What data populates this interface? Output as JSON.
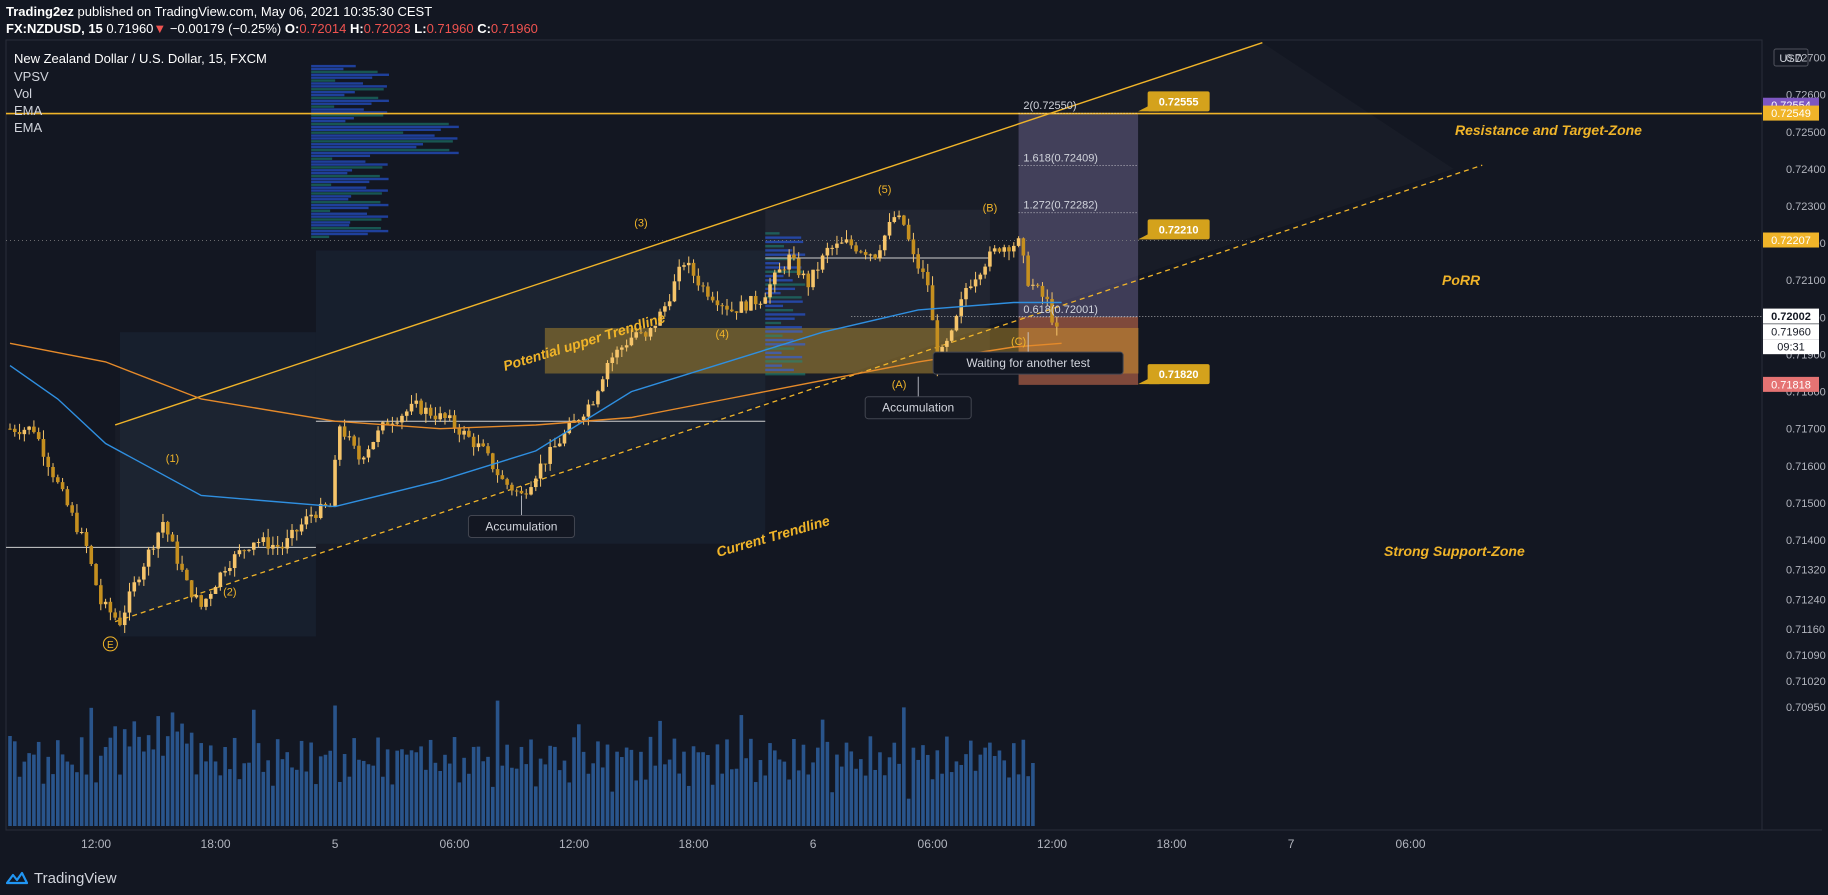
{
  "header": {
    "publisher": "Trading2ez",
    "published_text": "published on TradingView.com, May 06, 2021 10:35:30 CEST",
    "symbol": "FX:NZDUSD, 15",
    "last": "0.71960",
    "change": "−0.00179 (−0.25%)",
    "o_label": "O:",
    "o": "0.72014",
    "h_label": "H:",
    "h": "0.72023",
    "l_label": "L:",
    "l": "0.71960",
    "c_label": "C:",
    "c": "0.71960"
  },
  "legend": {
    "title": "New Zealand Dollar / U.S. Dollar, 15, FXCM",
    "indicators": [
      "VPSV",
      "Vol",
      "EMA",
      "EMA"
    ]
  },
  "footer": {
    "brand": "TradingView"
  },
  "colors": {
    "background": "#131722",
    "gold": "#f0b429",
    "candle": "#f5c46a",
    "ema_fast": "#2f8fe0",
    "ema_slow": "#e58a2a",
    "volume": "#2e5f9e",
    "label_bg": "#d4a21c"
  },
  "chart_data": {
    "type": "candlestick",
    "symbol": "NZDUSD",
    "currency": "USD",
    "ylim": [
      0.7095,
      0.7275
    ],
    "y_ticks": [
      "0.72700",
      "0.72600",
      "0.72500",
      "0.72400",
      "0.72300",
      "0.72200",
      "0.72100",
      "0.72000",
      "0.71900",
      "0.71800",
      "0.71700",
      "0.71600",
      "0.71500",
      "0.71400",
      "0.71320",
      "0.71240",
      "0.71160",
      "0.71090",
      "0.71020",
      "0.70950"
    ],
    "x_ticks": [
      "12:00",
      "18:00",
      "5",
      "06:00",
      "12:00",
      "18:00",
      "6",
      "06:00",
      "12:00",
      "18:00",
      "7",
      "06:00"
    ],
    "price_badges": [
      {
        "text": "0.72554",
        "color": "#7e57c2"
      },
      {
        "text": "0.72549",
        "color": "#f0b429"
      },
      {
        "text": "0.72207",
        "color": "#f0b429"
      },
      {
        "text": "0.72002",
        "color": "#ffffff"
      },
      {
        "text": "0.71960",
        "color": "#ffffff"
      },
      {
        "text": "09:31",
        "color": "#ffffff"
      },
      {
        "text": "0.71818",
        "color": "#e57373"
      }
    ],
    "price_path": [
      [
        0,
        0.717
      ],
      [
        6,
        0.717
      ],
      [
        12,
        0.7152
      ],
      [
        17,
        0.7138
      ],
      [
        20,
        0.7123
      ],
      [
        24,
        0.7118
      ],
      [
        28,
        0.7131
      ],
      [
        33,
        0.7145
      ],
      [
        38,
        0.7128
      ],
      [
        41,
        0.7122
      ],
      [
        46,
        0.7133
      ],
      [
        52,
        0.714
      ],
      [
        58,
        0.7138
      ],
      [
        64,
        0.7147
      ],
      [
        68,
        0.7149
      ],
      [
        70,
        0.7171
      ],
      [
        74,
        0.7162
      ],
      [
        80,
        0.7172
      ],
      [
        86,
        0.7176
      ],
      [
        93,
        0.7172
      ],
      [
        100,
        0.7164
      ],
      [
        104,
        0.7156
      ],
      [
        108,
        0.7152
      ],
      [
        112,
        0.716
      ],
      [
        118,
        0.717
      ],
      [
        123,
        0.7178
      ],
      [
        126,
        0.7188
      ],
      [
        132,
        0.7196
      ],
      [
        134,
        0.7194
      ],
      [
        138,
        0.7203
      ],
      [
        142,
        0.7215
      ],
      [
        146,
        0.7208
      ],
      [
        152,
        0.7202
      ],
      [
        158,
        0.7205
      ],
      [
        164,
        0.7216
      ],
      [
        168,
        0.7209
      ],
      [
        172,
        0.7218
      ],
      [
        176,
        0.722
      ],
      [
        182,
        0.7217
      ],
      [
        186,
        0.7227
      ],
      [
        188,
        0.7225
      ],
      [
        190,
        0.7216
      ],
      [
        193,
        0.7209
      ],
      [
        195,
        0.7188
      ],
      [
        198,
        0.7195
      ],
      [
        201,
        0.7208
      ],
      [
        205,
        0.7215
      ],
      [
        208,
        0.7219
      ],
      [
        212,
        0.722
      ],
      [
        214,
        0.721
      ],
      [
        218,
        0.7204
      ],
      [
        220,
        0.7196
      ]
    ],
    "ema_fast": [
      [
        0,
        0.7187
      ],
      [
        10,
        0.7178
      ],
      [
        20,
        0.7166
      ],
      [
        40,
        0.7152
      ],
      [
        68,
        0.7149
      ],
      [
        90,
        0.7156
      ],
      [
        110,
        0.7164
      ],
      [
        130,
        0.718
      ],
      [
        150,
        0.7188
      ],
      [
        170,
        0.7196
      ],
      [
        190,
        0.7202
      ],
      [
        210,
        0.7204
      ],
      [
        220,
        0.7204
      ]
    ],
    "ema_slow": [
      [
        0,
        0.7193
      ],
      [
        20,
        0.7188
      ],
      [
        40,
        0.7178
      ],
      [
        68,
        0.7172
      ],
      [
        90,
        0.717
      ],
      [
        110,
        0.7171
      ],
      [
        130,
        0.7173
      ],
      [
        150,
        0.7178
      ],
      [
        170,
        0.7183
      ],
      [
        190,
        0.7188
      ],
      [
        210,
        0.7192
      ],
      [
        220,
        0.7193
      ]
    ],
    "wave_labels": [
      "(1)",
      "(2)",
      "(3)",
      "(4)",
      "(5)",
      "(A)",
      "(B)",
      "(C)",
      "E"
    ],
    "annotations": {
      "upper_trend": "Potential upper Trendline",
      "current_trend": "Current Trendline",
      "resistance": "Resistance and Target-Zone",
      "porr": "PoRR",
      "support": "Strong Support-Zone",
      "accumulation_1": "Accumulation",
      "accumulation_2": "Accumulation",
      "waiting": "Waiting for another test"
    },
    "fib_levels": [
      {
        "label": "2(0.72550)",
        "value": 0.7255
      },
      {
        "label": "1.618(0.72409)",
        "value": 0.72409
      },
      {
        "label": "1.272(0.72282)",
        "value": 0.72282
      },
      {
        "label": "0.618(0.72001)",
        "value": 0.72001
      }
    ],
    "callouts": [
      {
        "text": "0.72555",
        "value": 0.72555
      },
      {
        "text": "0.72210",
        "value": 0.7221
      },
      {
        "text": "0.71820",
        "value": 0.7182
      }
    ]
  }
}
